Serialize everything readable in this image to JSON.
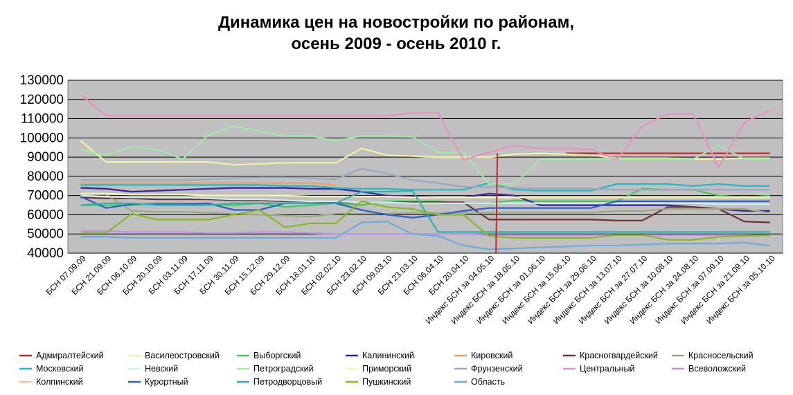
{
  "chart_data": {
    "type": "line",
    "title": "Динамика цен на новостройки по районам,",
    "subtitle": "осень 2009 - осень 2010 г.",
    "xlabel": "",
    "ylabel": "",
    "ylim": [
      40000,
      130000
    ],
    "yticks": [
      "40000",
      "50000",
      "60000",
      "70000",
      "80000",
      "90000",
      "100000",
      "110000",
      "120000",
      "130000"
    ],
    "grid": true,
    "legend_position": "bottom",
    "plot_background": "#c0c0c0",
    "x_labels": [
      "БСН 07.09.09",
      "БСН 21.09.09",
      "БСН 06.10.09",
      "БСН 20.10.09",
      "БСН 03.11.09",
      "БСН 17.11.09",
      "БСН 30.11.09",
      "БСН 15.12.09",
      "БСН 29.12.09",
      "БСН 18.01.10",
      "БСН 02.02.10",
      "БСН 23.02.10",
      "БСН 09.03.10",
      "БСН 23.03.10",
      "БСН 06.04.10",
      "БСН 20.04.10",
      "Индекс БСН за 04.05.10",
      "Индекс БСН за 18.05.10",
      "Индекс БСН за 01.06.10",
      "Индекс БСН за 15.06.10",
      "Индекс БСН за 29.06.10",
      "Индекс БСН за 13.07.10",
      "Индекс БСН за 27.07.10",
      "Индекс БСН за 10.08.10",
      "Индекс БСН за 24.08.10",
      "Индекс БСН за 07.09.10",
      "Индекс БСН за 21.09.10",
      "Индекс БСН за 05.10.10"
    ],
    "series": [
      {
        "name": "Адмиралтейский",
        "color": "#c0272d",
        "values": [
          null,
          null,
          null,
          null,
          null,
          null,
          null,
          null,
          null,
          null,
          null,
          null,
          null,
          null,
          null,
          null,
          null,
          null,
          null,
          92000,
          92000,
          92000,
          92000,
          92000,
          92000,
          92000,
          92000,
          92000
        ]
      },
      {
        "name": "Василеостровский",
        "color": "#f2f2a6",
        "values": [
          98500,
          87500,
          87500,
          87500,
          87500,
          87500,
          86000,
          86500,
          87000,
          87000,
          87000,
          94500,
          91000,
          90500,
          90000,
          90000,
          90000,
          91500,
          92000,
          91500,
          91000,
          89500,
          89500,
          89500,
          89000,
          89000,
          89500,
          89500
        ]
      },
      {
        "name": "Выборгский",
        "color": "#4cc45c",
        "values": [
          65000,
          65000,
          65000,
          66000,
          66000,
          65500,
          65000,
          66000,
          64000,
          65000,
          66000,
          65000,
          67000,
          67000,
          67000,
          66000,
          66000,
          67500,
          67000,
          67000,
          67000,
          67000,
          73500,
          73000,
          73000,
          70000,
          69000,
          70000
        ]
      },
      {
        "name": "Калининский",
        "color": "#3d1f9e",
        "values": [
          74000,
          73500,
          72000,
          72500,
          73000,
          73500,
          74000,
          74000,
          74000,
          73500,
          73500,
          72000,
          70000,
          69500,
          69000,
          69000,
          71000,
          70000,
          65000,
          65000,
          65000,
          65000,
          65000,
          65000,
          64000,
          63000,
          62000,
          62000
        ]
      },
      {
        "name": "Кировский",
        "color": "#f0a060",
        "values": [
          76500,
          76500,
          76500,
          76500,
          76500,
          76500,
          76500,
          76500,
          76500,
          76500,
          75500,
          null,
          null,
          null,
          null,
          null,
          null,
          null,
          null,
          null,
          null,
          null,
          null,
          null,
          null,
          null,
          null,
          null
        ]
      },
      {
        "name": "Красногвардейский",
        "color": "#6e3030",
        "values": [
          69000,
          68500,
          68500,
          68000,
          68000,
          68000,
          67500,
          67500,
          67000,
          67000,
          66500,
          66500,
          66500,
          66500,
          66500,
          66500,
          57500,
          57500,
          57500,
          57500,
          57500,
          57000,
          57000,
          64000,
          64000,
          63000,
          56500,
          56000
        ]
      },
      {
        "name": "Красносельский",
        "color": "#9aaa80",
        "values": [
          71000,
          70500,
          62000,
          61500,
          61500,
          61000,
          60500,
          60000,
          59500,
          59000,
          60500,
          60500,
          60500,
          61000,
          61000,
          61000,
          61000,
          61000,
          61000,
          61000,
          61000,
          62000,
          62000,
          63000,
          63000,
          63000,
          63000,
          61000
        ]
      },
      {
        "name": "Московский",
        "color": "#22b8c8",
        "values": [
          75500,
          75500,
          75500,
          75500,
          75500,
          75500,
          75500,
          75500,
          75000,
          75000,
          74000,
          73500,
          73500,
          73000,
          73000,
          73000,
          76500,
          73000,
          72500,
          72500,
          72500,
          76000,
          76000,
          76000,
          75000,
          76000,
          75000,
          75000
        ]
      },
      {
        "name": "Невский",
        "color": "#d0f0f0",
        "values": [
          70000,
          69500,
          69000,
          69000,
          69000,
          68500,
          68000,
          68000,
          67500,
          67000,
          67000,
          66500,
          66500,
          66000,
          66000,
          66000,
          66000,
          66000,
          66000,
          66000,
          66000,
          66000,
          66000,
          66000,
          66000,
          65500,
          65500,
          65500
        ]
      },
      {
        "name": "Петроградский",
        "color": "#a0e8a8",
        "values": [
          94000,
          91000,
          95500,
          94000,
          89000,
          101500,
          106000,
          103500,
          101000,
          101000,
          98500,
          101000,
          101000,
          100500,
          92500,
          92500,
          76000,
          76000,
          89000,
          89000,
          89000,
          89000,
          89000,
          89000,
          89000,
          96000,
          89000,
          89000
        ]
      },
      {
        "name": "Приморский",
        "color": "#f8f8b0",
        "values": [
          71000,
          71000,
          70500,
          70500,
          70500,
          70000,
          70000,
          70000,
          70000,
          69500,
          69500,
          69500,
          69500,
          69000,
          69000,
          69000,
          69000,
          69000,
          69000,
          69000,
          69000,
          69000,
          69000,
          69000,
          69000,
          69000,
          69000,
          69000
        ]
      },
      {
        "name": "Фрунзенский",
        "color": "#9aa8c0",
        "values": [
          78000,
          78000,
          78000,
          78000,
          78000,
          78500,
          79000,
          79500,
          79500,
          79000,
          78500,
          84000,
          81500,
          78000,
          76500,
          74500,
          74500,
          74000,
          73500,
          73500,
          73500,
          73000,
          73000,
          73000,
          73000,
          73000,
          73000,
          73000
        ]
      },
      {
        "name": "Центральный",
        "color": "#e890c0",
        "values": [
          122500,
          111500,
          111500,
          111500,
          111500,
          111500,
          111500,
          111500,
          111500,
          111500,
          111500,
          111500,
          111500,
          113000,
          113000,
          88500,
          92500,
          96000,
          94500,
          94500,
          94000,
          88500,
          106000,
          112500,
          112500,
          84500,
          108000,
          114500
        ]
      },
      {
        "name": "Всеволожский",
        "color": "#c090e8",
        "values": [
          51500,
          51500,
          51000,
          51000,
          51000,
          50500,
          50500,
          51000,
          51000,
          50500,
          50000,
          50000,
          50000,
          50000,
          50000,
          50000,
          49500,
          49500,
          49500,
          49500,
          49500,
          49500,
          49500,
          49500,
          49500,
          49500,
          49500,
          49000
        ]
      },
      {
        "name": "Колпинский",
        "color": "#f0c8a0",
        "values": [
          null,
          null,
          null,
          null,
          null,
          null,
          null,
          null,
          null,
          null,
          null,
          null,
          null,
          null,
          null,
          null,
          null,
          null,
          null,
          null,
          null,
          null,
          null,
          null,
          null,
          47000,
          null,
          null
        ]
      },
      {
        "name": "Курортный",
        "color": "#2a60c8",
        "values": [
          69500,
          63500,
          65500,
          65500,
          65500,
          66000,
          62500,
          62500,
          66000,
          66000,
          66000,
          62500,
          60000,
          58500,
          60000,
          62000,
          63500,
          63500,
          63500,
          63500,
          63500,
          67000,
          67000,
          67000,
          67000,
          67000,
          67000,
          67000
        ]
      },
      {
        "name": "Петродворцовый",
        "color": "#30b0a8",
        "values": [
          65000,
          66000,
          66000,
          65000,
          65000,
          65000,
          66000,
          66000,
          66000,
          66000,
          66000,
          72000,
          72000,
          72500,
          51000,
          51000,
          51000,
          51000,
          51000,
          51000,
          51000,
          51000,
          51000,
          51000,
          51000,
          51000,
          51000,
          51000
        ]
      },
      {
        "name": "Пушкинский",
        "color": "#88b820",
        "values": [
          50500,
          50500,
          60500,
          57500,
          57500,
          57500,
          60000,
          62500,
          53500,
          55500,
          55500,
          67000,
          64000,
          63000,
          60000,
          60000,
          49000,
          48000,
          48000,
          48000,
          48000,
          49500,
          49500,
          47000,
          47000,
          48500,
          49000,
          49500
        ]
      },
      {
        "name": "Область",
        "color": "#70a8e0",
        "values": [
          48500,
          48500,
          48000,
          48000,
          48000,
          48000,
          48000,
          48000,
          48000,
          48000,
          48000,
          56000,
          56500,
          50000,
          49000,
          44000,
          42000,
          42500,
          43000,
          43500,
          44000,
          44000,
          44500,
          45000,
          45000,
          45000,
          45500,
          44000
        ]
      }
    ],
    "legend": [
      "Адмиралтейский",
      "Василеостровский",
      "Выборгский",
      "Калининский",
      "Кировский",
      "Красногвардейский",
      "Красносельский",
      "Московский",
      "Невский",
      "Петроградский",
      "Приморский",
      "Фрунзенский",
      "Центральный",
      "Всеволожский",
      "Колпинский",
      "Курортный",
      "Петродворцовый",
      "Пушкинский",
      "Область"
    ]
  }
}
